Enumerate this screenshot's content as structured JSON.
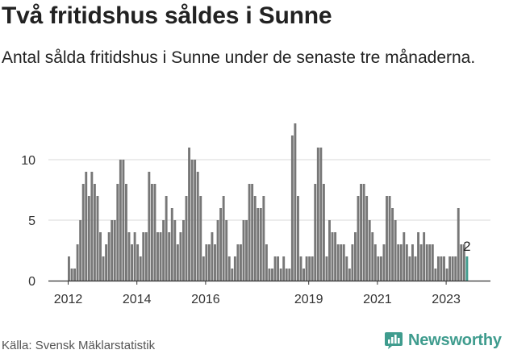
{
  "title": "Två fritidshus såldes i Sunne",
  "subtitle": "Antal sålda fritidshus i Sunne under de senaste tre månaderna.",
  "source": "Källa: Svensk Mäklarstatistik",
  "brand": {
    "name": "Newsworthy",
    "logo_icon": "chart-bubble-icon",
    "color": "#3f9c8e"
  },
  "chart_data": {
    "type": "bar",
    "title": "Två fritidshus såldes i Sunne",
    "subtitle": "Antal sålda fritidshus i Sunne under de senaste tre månaderna.",
    "xlabel": "",
    "ylabel": "",
    "x_start": "2012-01",
    "frequency": "monthly",
    "ylim": [
      0,
      13
    ],
    "yticks": [
      0,
      5,
      10
    ],
    "xtick_labels": [
      "2012",
      "2014",
      "2016",
      "2019",
      "2021",
      "2023"
    ],
    "grid": true,
    "bar_color": "#777777",
    "highlight_color": "#3f9c8e",
    "highlight_label": "2",
    "values": [
      2,
      1,
      1,
      3,
      5,
      8,
      9,
      7,
      9,
      8,
      7,
      4,
      2,
      3,
      4,
      5,
      5,
      8,
      10,
      10,
      8,
      4,
      3,
      4,
      3,
      2,
      4,
      4,
      9,
      8,
      8,
      4,
      4,
      5,
      7,
      4,
      6,
      5,
      3,
      4,
      5,
      7,
      11,
      10,
      10,
      9,
      7,
      2,
      3,
      3,
      4,
      3,
      5,
      6,
      7,
      5,
      2,
      1,
      2,
      3,
      3,
      5,
      5,
      8,
      8,
      7,
      6,
      6,
      7,
      3,
      1,
      1,
      2,
      2,
      1,
      2,
      1,
      1,
      12,
      13,
      7,
      2,
      1,
      2,
      2,
      2,
      8,
      11,
      11,
      8,
      2,
      5,
      4,
      4,
      3,
      3,
      3,
      2,
      1,
      3,
      4,
      7,
      8,
      8,
      7,
      5,
      4,
      3,
      2,
      2,
      3,
      7,
      7,
      6,
      5,
      3,
      3,
      4,
      3,
      2,
      3,
      2,
      4,
      3,
      4,
      3,
      3,
      3,
      1,
      2,
      2,
      2,
      1,
      2,
      2,
      2,
      6,
      3,
      3,
      2
    ]
  }
}
